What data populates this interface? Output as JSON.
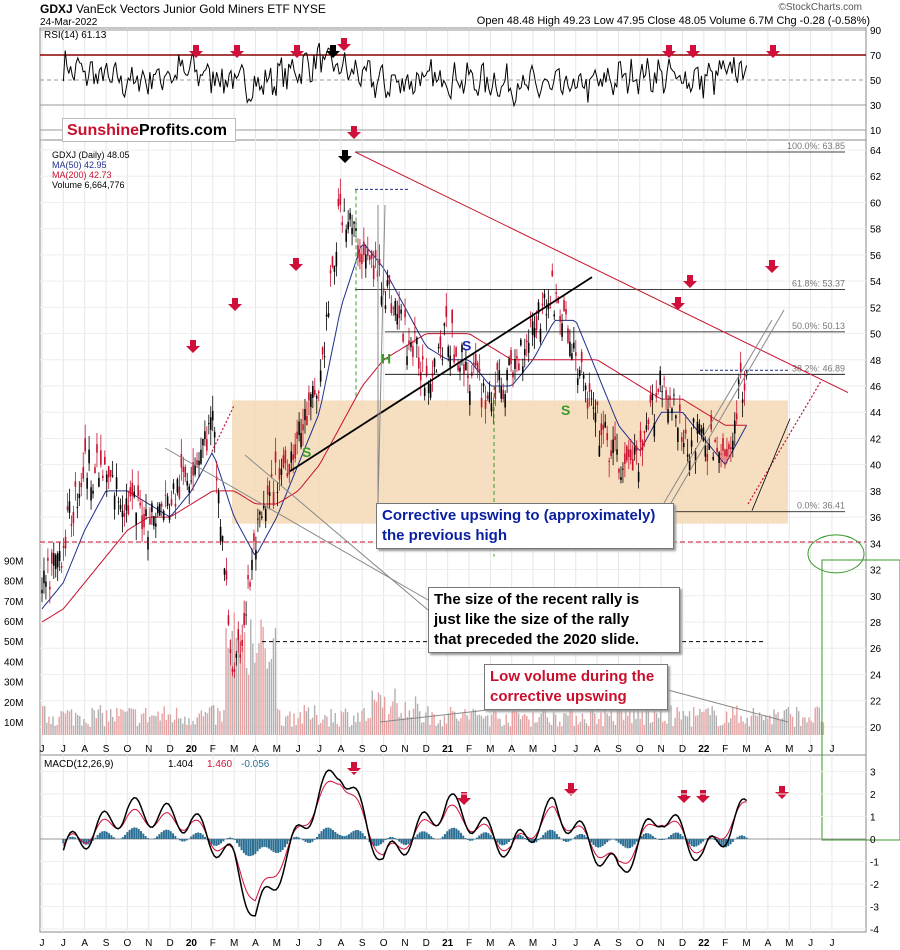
{
  "header": {
    "symbol": "GDXJ",
    "name": "VanEck Vectors Junior Gold Miners ETF",
    "exchange": "NYSE",
    "date": "24-Mar-2022",
    "quote": "Open 48.48  High 49.23  Low 47.95  Close 48.05  Volume 6.7M  Chg -0.28 (-0.58%)",
    "watermark_site": "©StockCharts.com",
    "brand_part1": "Sunshine",
    "brand_part2": "Profits.com"
  },
  "colors": {
    "rsi_line": "#000000",
    "rsi_70_line": "#8b0000",
    "ma50": "#1f2f8c",
    "ma200": "#c8102e",
    "shaded_zone": "#f5d9b5",
    "arrow_red": "#d0103a",
    "annotation_blue": "#0a1fa0",
    "annotation_red": "#c8102e",
    "macd_line": "#000000",
    "signal_line": "#d0103a",
    "histogram": "#2b6f94"
  },
  "chart_data": [
    {
      "type": "line",
      "name": "RSI panel",
      "title": "RSI(14) 61.13",
      "x": [
        "2019-07",
        "2019-10",
        "2020-01",
        "2020-04",
        "2020-07",
        "2020-10",
        "2021-01",
        "2021-04",
        "2021-07",
        "2021-10",
        "2022-01",
        "2022-03"
      ],
      "series": [
        {
          "values": [
            60,
            48,
            58,
            45,
            66,
            47,
            52,
            46,
            44,
            55,
            50,
            61
          ]
        }
      ],
      "yticks": [
        "10",
        "30",
        "50",
        "70",
        "90"
      ],
      "ylim": [
        10,
        90
      ]
    },
    {
      "type": "line",
      "name": "Price panel",
      "title": "GDXJ (Daily) 48.05",
      "legend": [
        "GDXJ (Daily) 48.05",
        "MA(50) 42.95",
        "MA(200) 42.73",
        "Volume 6,664,776"
      ],
      "x": [
        "2019-06",
        "2019-07",
        "2019-08",
        "2019-09",
        "2019-10",
        "2019-11",
        "2019-12",
        "2020-01",
        "2020-02",
        "2020-03",
        "2020-04",
        "2020-05",
        "2020-06",
        "2020-07",
        "2020-08",
        "2020-09",
        "2020-10",
        "2020-11",
        "2020-12",
        "2021-01",
        "2021-02",
        "2021-03",
        "2021-04",
        "2021-05",
        "2021-06",
        "2021-07",
        "2021-08",
        "2021-09",
        "2021-10",
        "2021-11",
        "2021-12",
        "2022-01",
        "2022-02",
        "2022-03"
      ],
      "series": [
        {
          "name": "GDXJ (Daily) 48.05",
          "values": [
            30,
            34,
            40,
            39,
            37,
            36,
            37,
            40,
            43,
            23,
            34,
            39,
            42,
            46,
            60,
            56,
            54,
            50,
            47,
            50,
            47,
            45,
            47,
            51,
            53,
            48,
            43,
            40,
            40,
            47,
            42,
            42,
            40,
            48
          ]
        },
        {
          "name": "MA(50) 42.95",
          "values": [
            29,
            31,
            35,
            38,
            38,
            37,
            36,
            38,
            41,
            36,
            33,
            36,
            40,
            44,
            52,
            57,
            55,
            52,
            49,
            48,
            48,
            46,
            46,
            48,
            51,
            51,
            47,
            43,
            41,
            44,
            44,
            42,
            40,
            43
          ]
        },
        {
          "name": "MA(200) 42.73",
          "values": [
            28,
            29,
            31,
            33,
            35,
            36,
            36,
            37,
            38,
            38,
            37,
            37,
            38,
            40,
            43,
            46,
            48,
            49,
            50,
            50,
            50,
            49,
            48,
            48,
            48,
            48,
            48,
            47,
            46,
            45,
            45,
            44,
            43,
            43
          ]
        }
      ],
      "yticks": [
        "20",
        "22",
        "24",
        "26",
        "28",
        "30",
        "32",
        "34",
        "36",
        "38",
        "40",
        "42",
        "44",
        "46",
        "48",
        "50",
        "52",
        "54",
        "56",
        "58",
        "60",
        "62",
        "64"
      ],
      "ylim": [
        19,
        64
      ],
      "volume_ticks": [
        "10M",
        "20M",
        "30M",
        "40M",
        "50M",
        "60M",
        "70M",
        "80M",
        "90M"
      ],
      "fibonacci": [
        "100.0%: 63.85",
        "61.8%: 53.37",
        "50.0%: 50.13",
        "38.2%: 46.89",
        "0.0%: 36.41"
      ],
      "letters": [
        "S",
        "H",
        "S",
        "S"
      ]
    },
    {
      "type": "line",
      "name": "MACD panel",
      "title": "MACD(12,26,9)",
      "legend": [
        "1.404",
        "1.460",
        "-0.056"
      ],
      "x": [
        "2019-07",
        "2019-10",
        "2020-01",
        "2020-03",
        "2020-04",
        "2020-07",
        "2020-08",
        "2020-10",
        "2021-01",
        "2021-04",
        "2021-06",
        "2021-09",
        "2021-11",
        "2022-01",
        "2022-03"
      ],
      "series": [
        {
          "values": [
            -0.5,
            1.3,
            0.8,
            -1.0,
            -3.5,
            2.0,
            3.2,
            -1.0,
            1.6,
            -0.5,
            1.4,
            -1.5,
            1.2,
            -0.8,
            1.4
          ]
        },
        {
          "values": [
            -0.3,
            1.0,
            0.7,
            -0.8,
            -2.8,
            1.8,
            2.8,
            -0.8,
            1.3,
            -0.4,
            1.2,
            -1.2,
            1.0,
            -0.6,
            1.46
          ]
        }
      ],
      "yticks": [
        "-4",
        "-3",
        "-2",
        "-1",
        "0",
        "1",
        "2",
        "3"
      ],
      "ylim": [
        -4,
        3.6
      ]
    }
  ],
  "x_axis": {
    "labels": [
      "J",
      "J",
      "A",
      "S",
      "O",
      "N",
      "D",
      "20",
      "F",
      "M",
      "A",
      "M",
      "J",
      "J",
      "A",
      "S",
      "O",
      "N",
      "D",
      "21",
      "F",
      "M",
      "A",
      "M",
      "J",
      "J",
      "A",
      "S",
      "O",
      "N",
      "D",
      "22",
      "F",
      "M",
      "A",
      "M",
      "J",
      "J"
    ]
  },
  "annotations": {
    "corrective": "Corrective upswing to (approximately)\nthe previous high",
    "rally": "The size of the recent rally is\njust like the size of the rally\nthat preceded the 2020 slide.",
    "volume": "Low volume during the\ncorrective upswing"
  }
}
